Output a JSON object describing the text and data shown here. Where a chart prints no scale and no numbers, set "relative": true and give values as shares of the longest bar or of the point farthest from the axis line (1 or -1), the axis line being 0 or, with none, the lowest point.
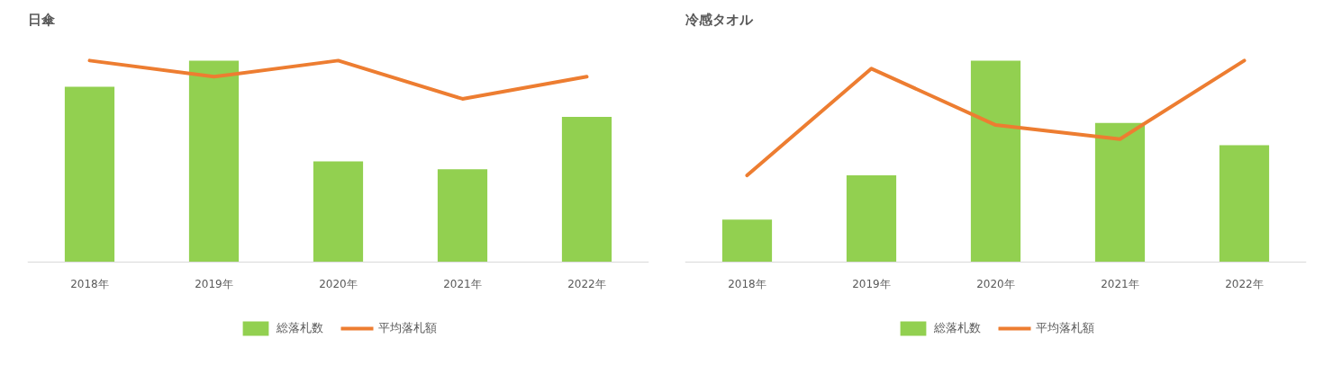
{
  "chart_data": [
    {
      "type": "bar",
      "title": "日傘",
      "categories": [
        "2018年",
        "2019年",
        "2020年",
        "2021年",
        "2022年"
      ],
      "relative": true,
      "legend": "bottom",
      "grid": false,
      "series": [
        {
          "name": "総落札数",
          "color": "#92d050",
          "values": [
            0.87,
            1,
            0.5,
            0.46,
            0.72
          ]
        },
        {
          "name": "平均落札額",
          "type": "line",
          "color": "#ed7d31",
          "values": [
            1,
            0.92,
            1,
            0.81,
            0.92
          ]
        }
      ]
    },
    {
      "type": "bar",
      "title": "冷感タオル",
      "categories": [
        "2018年",
        "2019年",
        "2020年",
        "2021年",
        "2022年"
      ],
      "relative": true,
      "legend": "bottom",
      "grid": false,
      "series": [
        {
          "name": "総落札数",
          "color": "#92d050",
          "values": [
            0.21,
            0.43,
            1,
            0.69,
            0.58
          ]
        },
        {
          "name": "平均落札額",
          "type": "line",
          "color": "#ed7d31",
          "values": [
            0.43,
            0.96,
            0.68,
            0.61,
            1
          ]
        }
      ]
    }
  ]
}
